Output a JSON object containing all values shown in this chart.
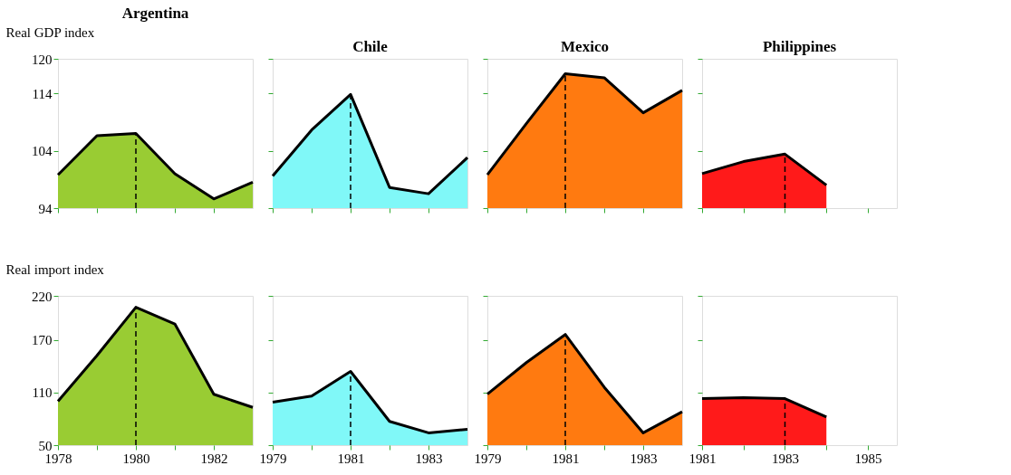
{
  "chart_data": [
    {
      "type": "area",
      "title": "Argentina",
      "ylabel": "Real GDP index",
      "tick_labels": "y",
      "color": "#99cc33",
      "x": [
        1978,
        1979,
        1980,
        1981,
        1982,
        1983
      ],
      "values": [
        99.8,
        106.6,
        107,
        100,
        95.6,
        98.5
      ],
      "xlim": [
        1978,
        1983
      ],
      "ylim": [
        94,
        120
      ],
      "yticks": [
        94,
        104,
        114,
        120
      ],
      "xticks": [
        1978,
        {
          "value": 1979,
          "label": null
        },
        1980,
        {
          "value": 1981,
          "label": null
        },
        1982
      ],
      "grid": false,
      "ref_lines": [
        {
          "axis": "x",
          "value": 1980,
          "line_style": "dashed"
        }
      ]
    },
    {
      "type": "area",
      "title": "Chile",
      "tick_labels": false,
      "color": "#80f8f8",
      "x": [
        1979,
        1980,
        1981,
        1982,
        1983,
        1984
      ],
      "values": [
        99.6,
        107.6,
        113.8,
        97.6,
        96.5,
        102.8
      ],
      "xlim": [
        1979,
        1984
      ],
      "ylim": [
        94,
        120
      ],
      "yticks": [
        94,
        104,
        114,
        120
      ],
      "xticks": [
        1979,
        {
          "value": 1980,
          "label": null
        },
        1981,
        {
          "value": 1982,
          "label": null
        },
        1983
      ],
      "grid": false,
      "ref_lines": [
        {
          "axis": "x",
          "value": 1981,
          "line_style": "dashed"
        }
      ]
    },
    {
      "type": "area",
      "title": "Mexico",
      "tick_labels": false,
      "color": "#ff7a10",
      "x": [
        1979,
        1980,
        1981,
        1982,
        1983,
        1984
      ],
      "values": [
        99.8,
        108.7,
        117.4,
        116.7,
        110.6,
        114.5
      ],
      "xlim": [
        1979,
        1984
      ],
      "ylim": [
        94,
        120
      ],
      "yticks": [
        94,
        104,
        114,
        120
      ],
      "xticks": [
        1979,
        {
          "value": 1980,
          "label": null
        },
        1981,
        {
          "value": 1982,
          "label": null
        },
        1983
      ],
      "grid": false,
      "ref_lines": [
        {
          "axis": "x",
          "value": 1981,
          "line_style": "dashed"
        }
      ]
    },
    {
      "type": "area",
      "title": "Philippines",
      "tick_labels": false,
      "color": "#ff1a1a",
      "x": [
        1981,
        1982,
        1983,
        1984
      ],
      "values": [
        100,
        102.1,
        103.4,
        98
      ],
      "xlim": [
        1981,
        1985.7
      ],
      "ylim": [
        94,
        120
      ],
      "yticks": [
        94,
        104,
        114,
        120
      ],
      "xticks": [
        1981,
        {
          "value": 1982,
          "label": null
        },
        1983,
        {
          "value": 1984,
          "label": null
        },
        1985
      ],
      "grid": false,
      "ref_lines": [
        {
          "axis": "x",
          "value": 1983,
          "line_style": "dashed"
        }
      ]
    },
    {
      "type": "area",
      "ylabel": "Real import index",
      "color": "#99cc33",
      "x": [
        1978,
        1979,
        1980,
        1981,
        1982,
        1983
      ],
      "values": [
        100,
        152,
        207,
        188,
        108,
        93
      ],
      "xlim": [
        1978,
        1983
      ],
      "ylim": [
        50,
        220
      ],
      "yticks": [
        50,
        110,
        170,
        220
      ],
      "xticks": [
        1978,
        {
          "value": 1979,
          "label": null
        },
        1980,
        {
          "value": 1981,
          "label": null
        },
        1982
      ],
      "grid": false,
      "ref_lines": [
        {
          "axis": "x",
          "value": 1980,
          "line_style": "dashed"
        }
      ]
    },
    {
      "type": "area",
      "tick_labels": "x",
      "color": "#80f8f8",
      "x": [
        1979,
        1980,
        1981,
        1982,
        1983,
        1984
      ],
      "values": [
        99,
        106,
        134,
        77,
        64,
        68
      ],
      "xlim": [
        1979,
        1984
      ],
      "ylim": [
        50,
        220
      ],
      "yticks": [
        50,
        110,
        170,
        220
      ],
      "xticks": [
        1979,
        {
          "value": 1980,
          "label": null
        },
        1981,
        {
          "value": 1982,
          "label": null
        },
        1983
      ],
      "grid": false,
      "ref_lines": [
        {
          "axis": "x",
          "value": 1981,
          "line_style": "dashed"
        }
      ]
    },
    {
      "type": "area",
      "tick_labels": "x",
      "color": "#ff7a10",
      "x": [
        1979,
        1980,
        1981,
        1982,
        1983,
        1984
      ],
      "values": [
        108,
        144,
        176,
        116,
        64,
        88
      ],
      "xlim": [
        1979,
        1984
      ],
      "ylim": [
        50,
        220
      ],
      "yticks": [
        50,
        110,
        170,
        220
      ],
      "xticks": [
        1979,
        {
          "value": 1980,
          "label": null
        },
        1981,
        {
          "value": 1982,
          "label": null
        },
        1983
      ],
      "grid": false,
      "ref_lines": [
        {
          "axis": "x",
          "value": 1981,
          "line_style": "dashed"
        }
      ]
    },
    {
      "type": "area",
      "tick_labels": "x",
      "color": "#ff1a1a",
      "x": [
        1981,
        1982,
        1983,
        1984
      ],
      "values": [
        103,
        104,
        103,
        82
      ],
      "xlim": [
        1981,
        1985.7
      ],
      "ylim": [
        50,
        220
      ],
      "yticks": [
        50,
        110,
        170,
        220
      ],
      "xticks": [
        1981,
        {
          "value": 1982,
          "label": null
        },
        1983,
        {
          "value": 1984,
          "label": null
        },
        1985
      ],
      "grid": false,
      "ref_lines": [
        {
          "axis": "x",
          "value": 1983,
          "line_style": "dashed"
        }
      ]
    }
  ]
}
